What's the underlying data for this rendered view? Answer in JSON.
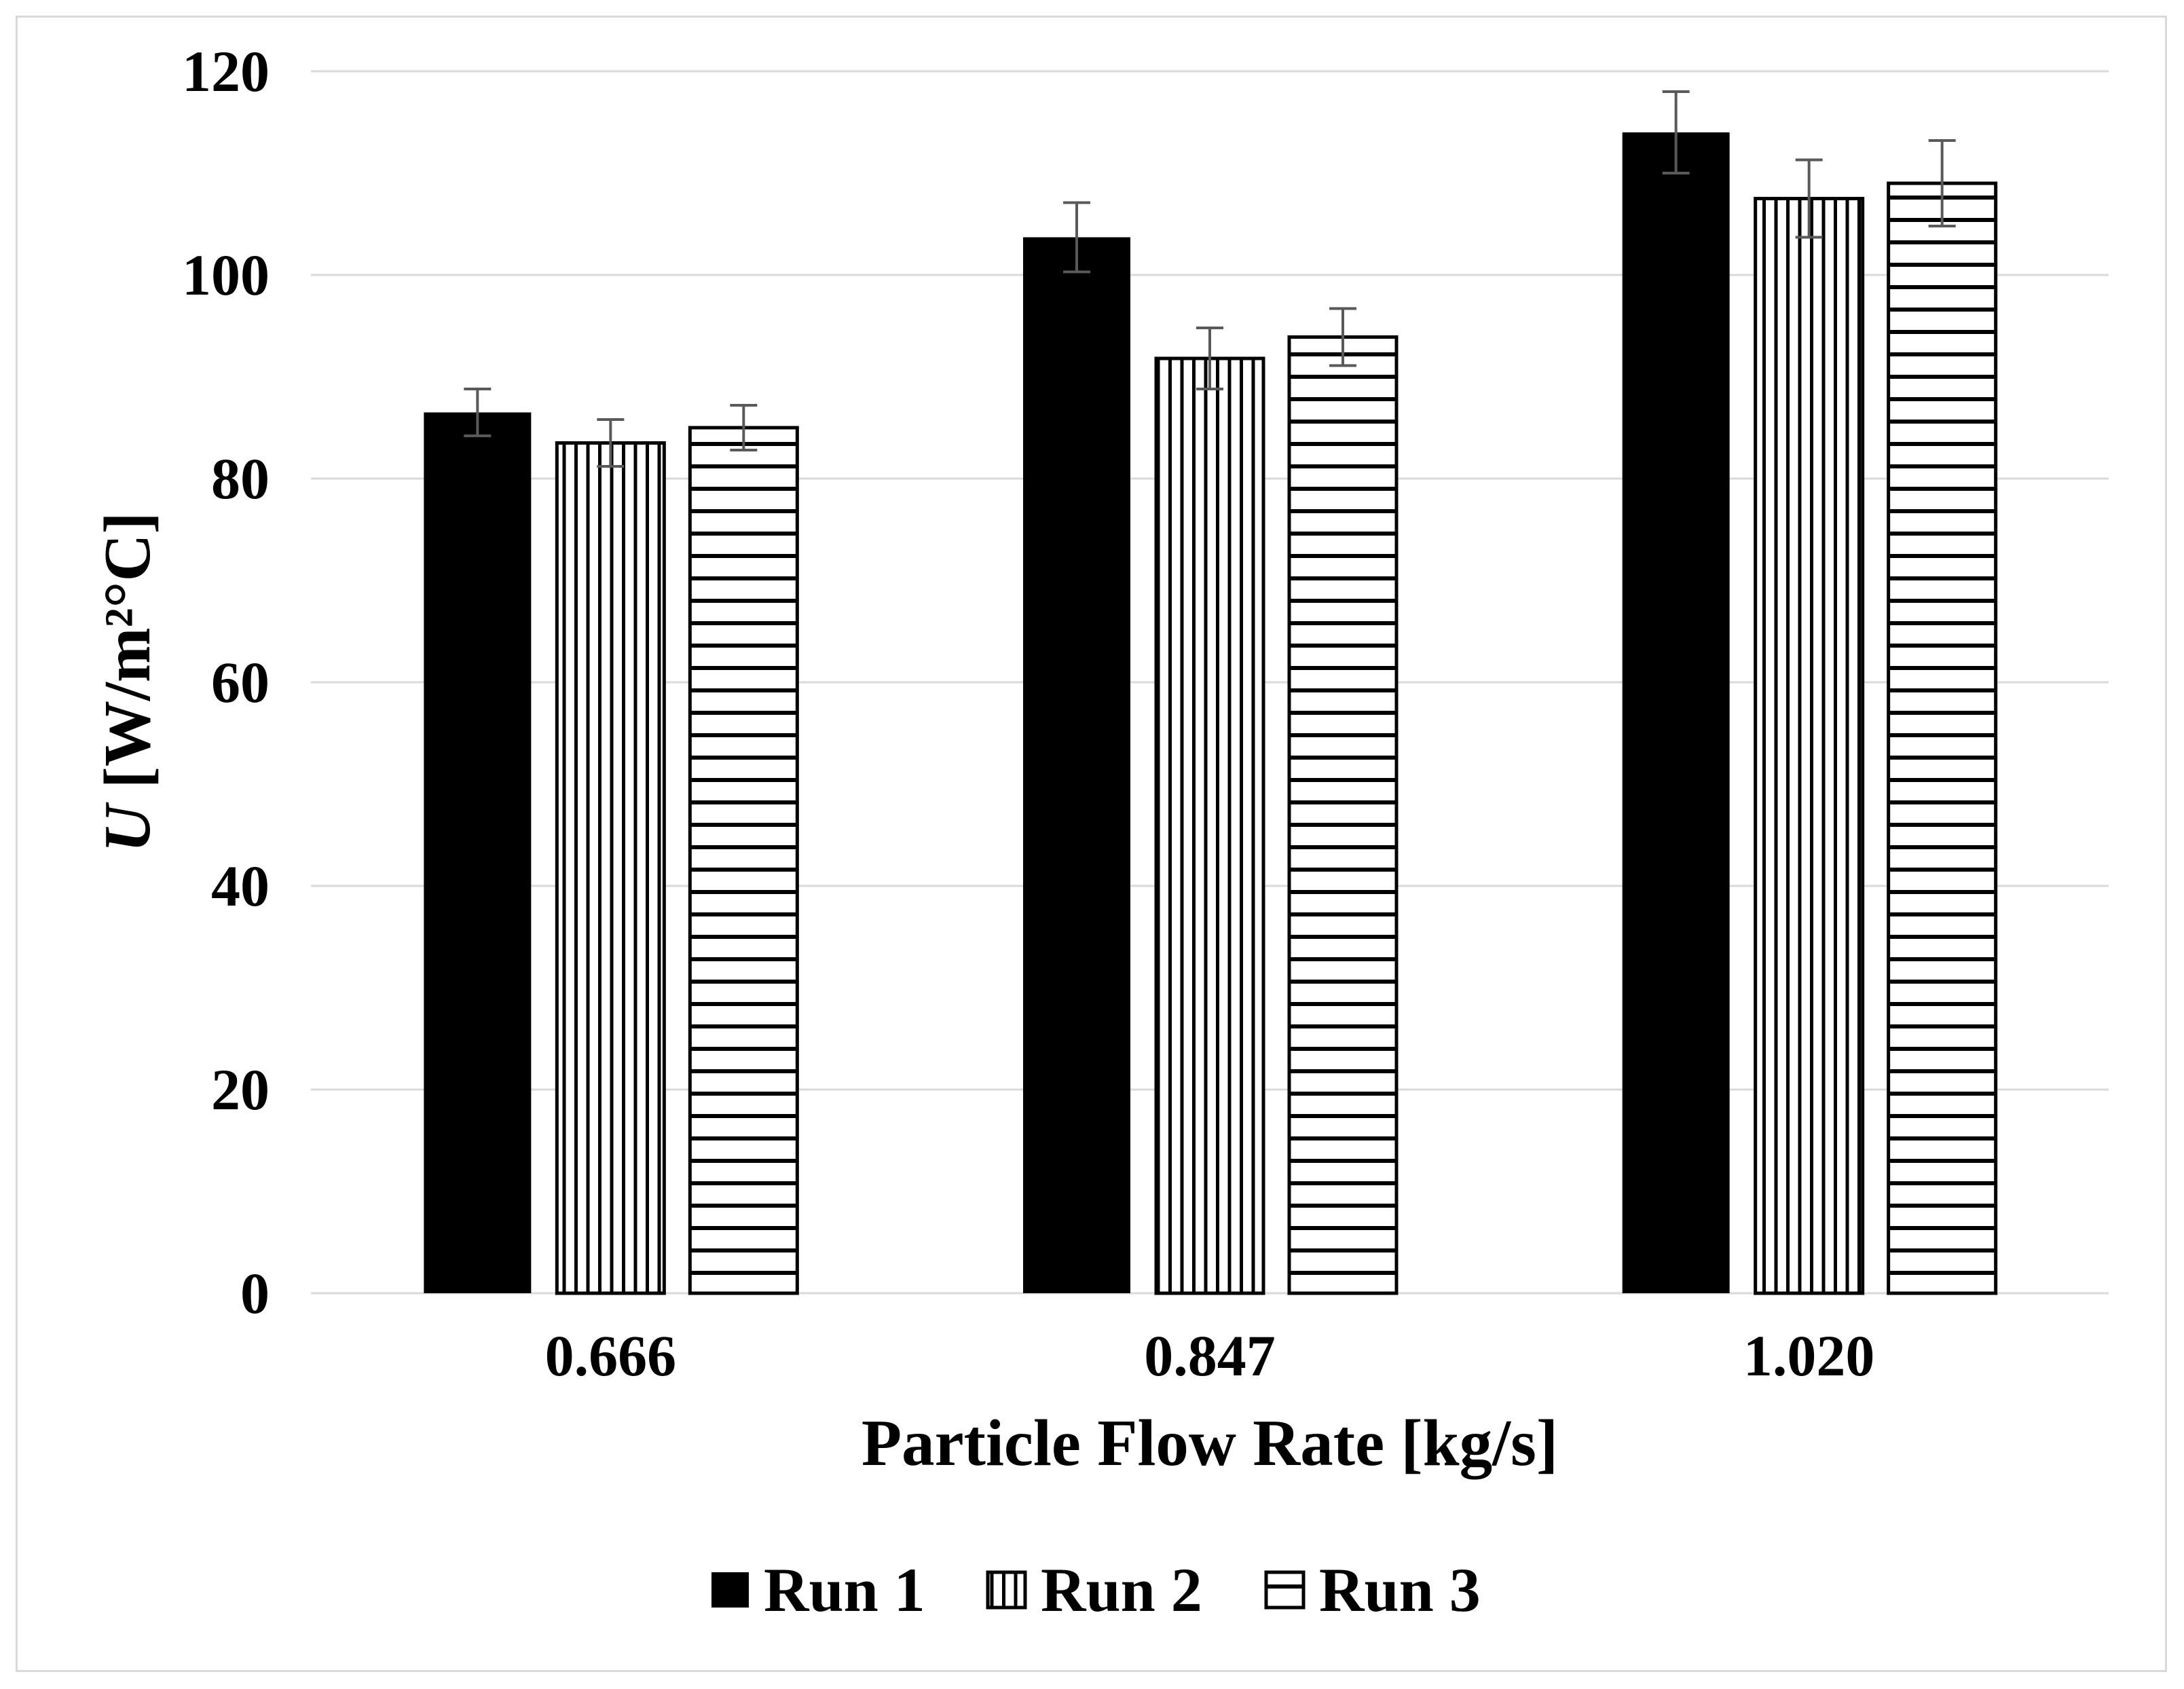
{
  "chart_data": {
    "type": "bar",
    "title": "",
    "xlabel": "Particle Flow Rate [kg/s]",
    "ylabel": "U [W/m²°C]",
    "ylabel_var": "U",
    "ylabel_units": " [W/m²°C]",
    "categories": [
      "0.666",
      "0.847",
      "1.020"
    ],
    "series": [
      {
        "name": "Run 1",
        "pattern": "solid-black",
        "values": [
          86.5,
          103.7,
          114.0
        ],
        "errors": [
          2.3,
          3.4,
          4.0
        ]
      },
      {
        "name": "Run 2",
        "pattern": "vertical-stripes",
        "values": [
          83.5,
          91.8,
          107.5
        ],
        "errors": [
          2.3,
          3.0,
          3.8
        ]
      },
      {
        "name": "Run 3",
        "pattern": "horizontal-stripes",
        "values": [
          85.0,
          93.9,
          109.0
        ],
        "errors": [
          2.2,
          2.8,
          4.2
        ]
      }
    ],
    "y_ticks": [
      0,
      20,
      40,
      60,
      80,
      100,
      120
    ],
    "ylim": [
      0,
      120
    ],
    "grid": true,
    "legend_position": "bottom",
    "colors": {
      "bar_fill": "#000000",
      "pattern_background": "#ffffff",
      "gridline": "#d9d9d9",
      "axis_line": "#d9d9d9",
      "error_bar": "#595959",
      "figure_border": "#d9d9d9",
      "text": "#000000",
      "background": "#ffffff"
    }
  }
}
